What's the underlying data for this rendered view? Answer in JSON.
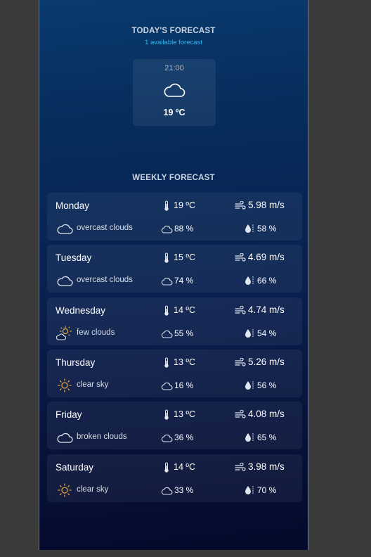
{
  "today": {
    "title": "TODAY'S FORECAST",
    "subtitle": "1 available forecast",
    "forecast": {
      "time": "21:00",
      "icon": "cloud-icon",
      "temp": "19 ºC"
    }
  },
  "weekly": {
    "title": "WEEKLY FORECAST",
    "days": [
      {
        "name": "Monday",
        "description": "overcast clouds",
        "icon": "cloud-icon",
        "temp": "19 ºC",
        "wind": "5.98 m/s",
        "clouds": "88 %",
        "humidity": "58 %"
      },
      {
        "name": "Tuesday",
        "description": "overcast clouds",
        "icon": "cloud-icon",
        "temp": "15 ºC",
        "wind": "4.69 m/s",
        "clouds": "74 %",
        "humidity": "66 %"
      },
      {
        "name": "Wednesday",
        "description": "few clouds",
        "icon": "sun-cloud-icon",
        "temp": "14 ºC",
        "wind": "4.74 m/s",
        "clouds": "55 %",
        "humidity": "54 %"
      },
      {
        "name": "Thursday",
        "description": "clear sky",
        "icon": "sun-icon",
        "temp": "13 ºC",
        "wind": "5.26 m/s",
        "clouds": "16 %",
        "humidity": "56 %"
      },
      {
        "name": "Friday",
        "description": "broken clouds",
        "icon": "cloud-icon",
        "temp": "13 ºC",
        "wind": "4.08 m/s",
        "clouds": "36 %",
        "humidity": "65 %"
      },
      {
        "name": "Saturday",
        "description": "clear sky",
        "icon": "sun-icon",
        "temp": "14 ºC",
        "wind": "3.98 m/s",
        "clouds": "33 %",
        "humidity": "70 %"
      }
    ]
  },
  "colors": {
    "accent": "#2bb8f0",
    "sun": "#e8a63a",
    "panel_top": "#0a3a6e",
    "panel_bottom": "#04092a"
  }
}
